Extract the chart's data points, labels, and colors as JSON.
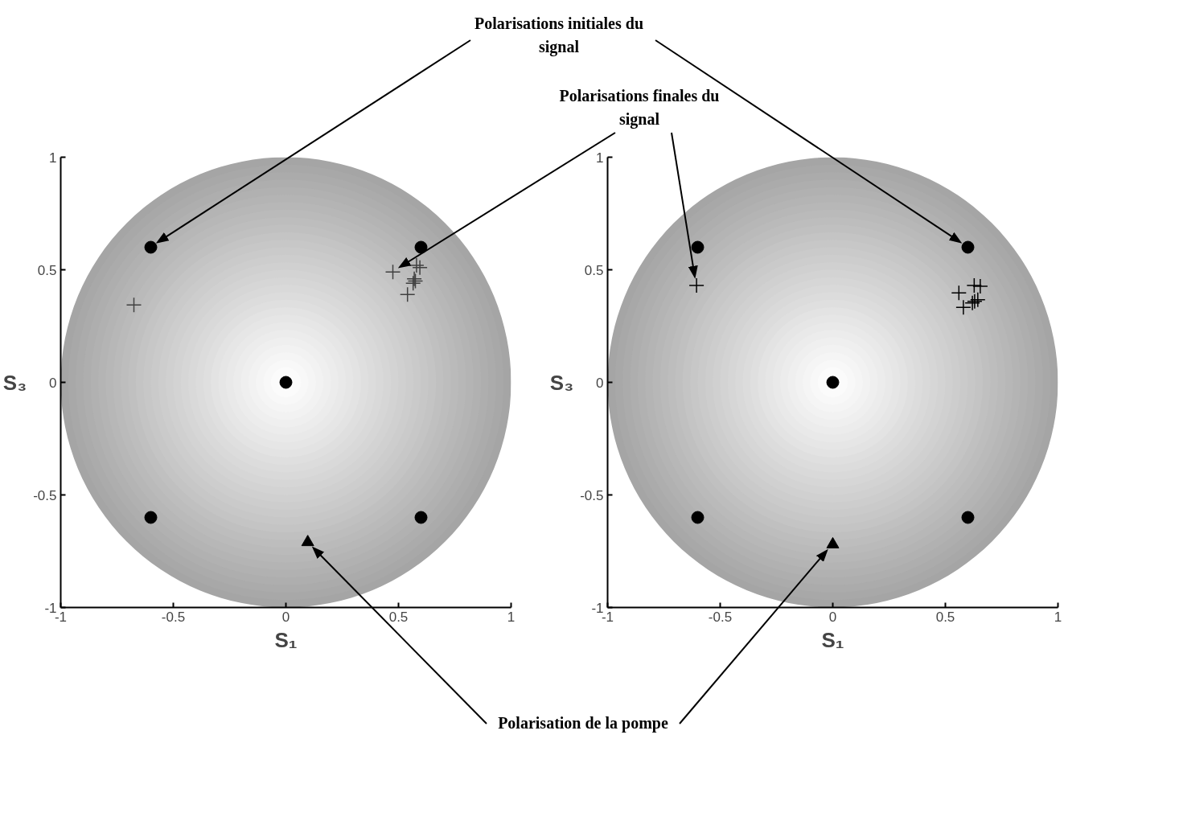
{
  "chart_data": [
    {
      "type": "scatter",
      "xlabel": "S₁",
      "ylabel": "S₃",
      "xlim": [
        -1,
        1
      ],
      "ylim": [
        -1,
        1
      ],
      "xticks": [
        -1,
        -0.5,
        0,
        0.5,
        1
      ],
      "yticks": [
        -1,
        -0.5,
        0,
        0.5,
        1
      ],
      "annotations": [
        "Polarisations initiales du signal",
        "Polarisation de la pompe"
      ],
      "series": [
        {
          "marker": "circle",
          "color": "#000000",
          "x": [
            -0.6,
            0.6,
            0,
            -0.6,
            0.6
          ],
          "values": [
            0.6,
            0.6,
            0,
            -0.6,
            -0.6
          ]
        },
        {
          "marker": "cross",
          "color": "#404040",
          "x": [
            -0.675,
            0.475,
            0.595,
            0.58,
            0.57,
            0.565,
            0.575,
            0.54
          ],
          "values": [
            0.344,
            0.49,
            0.51,
            0.52,
            0.46,
            0.44,
            0.45,
            0.39
          ]
        },
        {
          "marker": "triangle",
          "color": "#000000",
          "x": [
            0.097
          ],
          "values": [
            -0.71
          ]
        }
      ]
    },
    {
      "type": "scatter",
      "xlabel": "S₁",
      "ylabel": "S₃",
      "xlim": [
        -1,
        1
      ],
      "ylim": [
        -1,
        1
      ],
      "xticks": [
        -1,
        -0.5,
        0,
        0.5,
        1
      ],
      "yticks": [
        -1,
        -0.5,
        0,
        0.5,
        1
      ],
      "annotations": [
        "Polarisations finales du signal"
      ],
      "series": [
        {
          "marker": "circle",
          "color": "#000000",
          "x": [
            -0.6,
            0.6,
            0,
            -0.6,
            0.6
          ],
          "values": [
            0.6,
            0.6,
            0,
            -0.6,
            -0.6
          ]
        },
        {
          "marker": "cross",
          "color": "#000000",
          "x": [
            -0.605,
            0.56,
            0.628,
            0.655,
            0.58,
            0.63,
            0.62,
            0.644
          ],
          "values": [
            0.43,
            0.397,
            0.43,
            0.427,
            0.333,
            0.36,
            0.353,
            0.367
          ]
        },
        {
          "marker": "triangle",
          "color": "#000000",
          "x": [
            0.0
          ],
          "values": [
            -0.72
          ]
        }
      ]
    }
  ]
}
